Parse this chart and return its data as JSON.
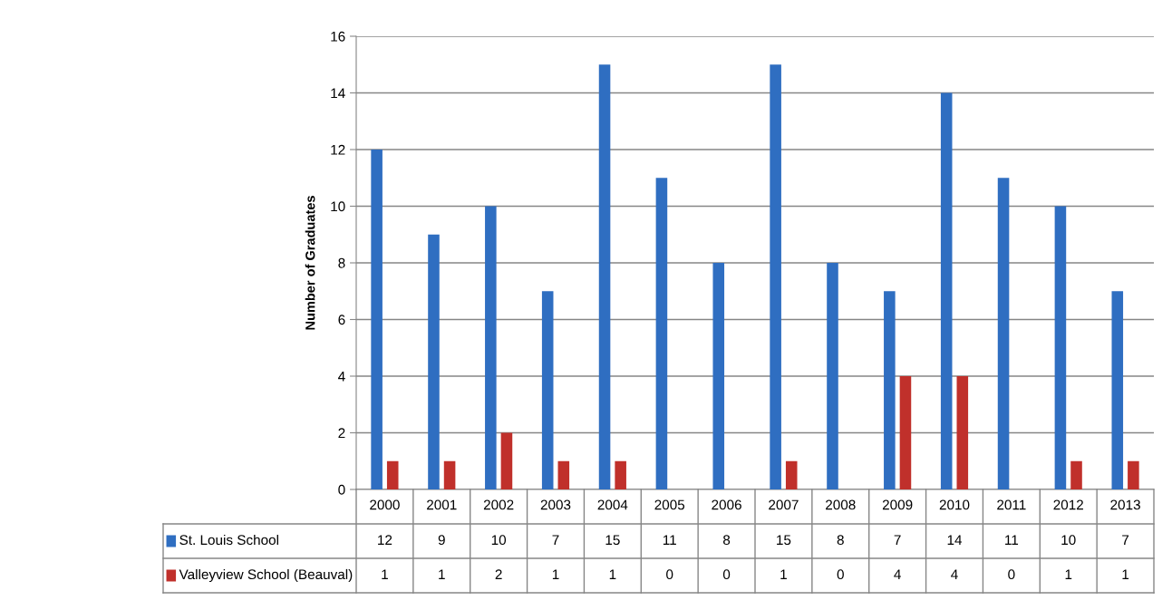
{
  "chart_data": {
    "type": "bar",
    "ylabel": "Number of Graduates",
    "categories": [
      "2000",
      "2001",
      "2002",
      "2003",
      "2004",
      "2005",
      "2006",
      "2007",
      "2008",
      "2009",
      "2010",
      "2011",
      "2012",
      "2013"
    ],
    "series": [
      {
        "name": "St. Louis School",
        "color": "#2f6ec1",
        "values": [
          12,
          9,
          10,
          7,
          15,
          11,
          8,
          15,
          8,
          7,
          14,
          11,
          10,
          7
        ]
      },
      {
        "name": "Valleyview School (Beauval)",
        "color": "#c0302b",
        "values": [
          1,
          1,
          2,
          1,
          1,
          0,
          0,
          1,
          0,
          4,
          4,
          0,
          1,
          1
        ]
      }
    ],
    "ylim": [
      0,
      16
    ],
    "yticks": [
      0,
      2,
      4,
      6,
      8,
      10,
      12,
      14,
      16
    ],
    "grid": "y",
    "legend": "bottom",
    "data_labels": true
  }
}
